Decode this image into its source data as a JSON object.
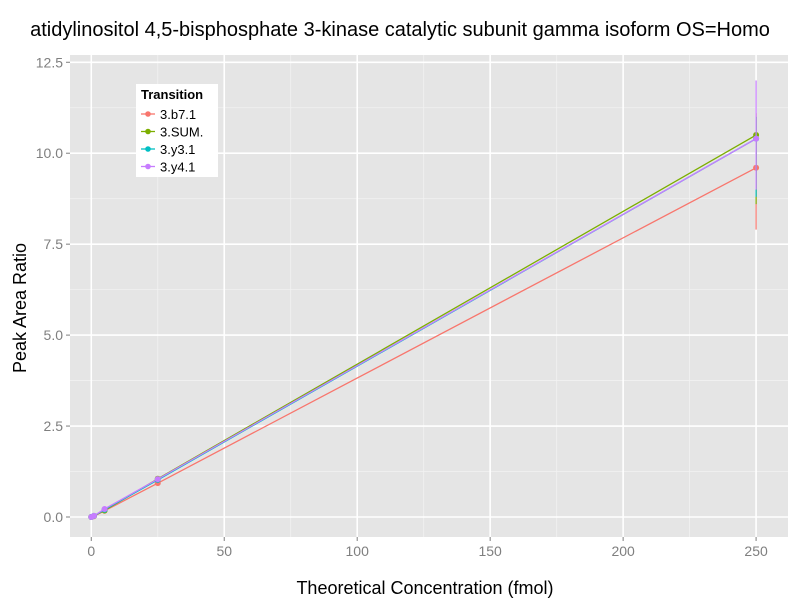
{
  "chart_data": {
    "type": "line",
    "title": "atidylinositol 4,5-bisphosphate 3-kinase catalytic subunit gamma isoform OS=Homo",
    "xlabel": "Theoretical Concentration (fmol)",
    "ylabel": "Peak Area Ratio",
    "xlim": [
      -8,
      262
    ],
    "ylim": [
      -0.55,
      12.7
    ],
    "xticks": [
      0,
      50,
      100,
      150,
      200,
      250
    ],
    "xtick_labels": [
      "0",
      "50",
      "100",
      "150",
      "200",
      "250"
    ],
    "yticks": [
      0.0,
      2.5,
      5.0,
      7.5,
      10.0,
      12.5
    ],
    "ytick_labels": [
      "0.0",
      "2.5",
      "5.0",
      "7.5",
      "10.0",
      "12.5"
    ],
    "grid": true,
    "legend": {
      "title": "Transition",
      "position": "top-left"
    },
    "series": [
      {
        "name": "3.b7.1",
        "color": "#F8766D",
        "points": [
          {
            "x": 0,
            "y": 0.0
          },
          {
            "x": 1,
            "y": 0.02
          },
          {
            "x": 5,
            "y": 0.17
          },
          {
            "x": 25,
            "y": 0.93
          },
          {
            "x": 250,
            "y": 9.6,
            "ymin": 7.9,
            "ymax": 11.1
          }
        ]
      },
      {
        "name": "3.SUM.",
        "color": "#7CAE00",
        "points": [
          {
            "x": 0,
            "y": 0.0
          },
          {
            "x": 1,
            "y": 0.03
          },
          {
            "x": 5,
            "y": 0.18
          },
          {
            "x": 25,
            "y": 1.05
          },
          {
            "x": 250,
            "y": 10.5,
            "ymin": 8.6,
            "ymax": 11.0
          }
        ]
      },
      {
        "name": "3.y3.1",
        "color": "#00BFC4",
        "points": [
          {
            "x": 0,
            "y": 0.0
          },
          {
            "x": 1,
            "y": 0.03
          },
          {
            "x": 5,
            "y": 0.2
          },
          {
            "x": 25,
            "y": 1.02
          },
          {
            "x": 250,
            "y": 10.4,
            "ymin": 8.8,
            "ymax": 11.0
          }
        ]
      },
      {
        "name": "3.y4.1",
        "color": "#C77CFF",
        "points": [
          {
            "x": 0,
            "y": 0.0
          },
          {
            "x": 1,
            "y": 0.03
          },
          {
            "x": 5,
            "y": 0.22
          },
          {
            "x": 25,
            "y": 1.04
          },
          {
            "x": 250,
            "y": 10.4,
            "ymin": 9.0,
            "ymax": 12.0
          }
        ]
      }
    ]
  }
}
